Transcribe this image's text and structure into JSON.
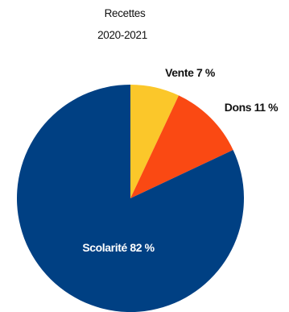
{
  "chart_data": {
    "type": "pie",
    "title": "Recettes",
    "subtitle": "2020-2021",
    "slices": [
      {
        "label": "Vente 7 %",
        "value": 7,
        "color": "#fbc72a",
        "label_color": "#111111"
      },
      {
        "label": "Dons 11 %",
        "value": 11,
        "color": "#fa4913",
        "label_color": "#111111"
      },
      {
        "label": "Scolarité 82 %",
        "value": 82,
        "color": "#004083",
        "label_color": "#ffffff"
      }
    ]
  }
}
